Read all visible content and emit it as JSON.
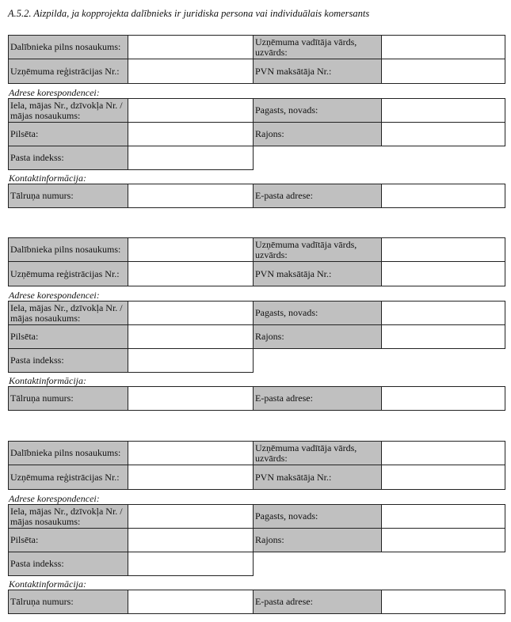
{
  "title": "A.5.2. Aizpilda, ja kopprojekta dalībnieks ir juridiska persona vai individuālais komersants",
  "blocks": [
    {
      "participant_full_name_label": "Dalībnieka pilns nosaukums:",
      "company_head_name_label": "Uzņēmuma vadītāja vārds, uzvārds:",
      "company_reg_no_label": "Uzņēmuma reģistrācijas Nr.:",
      "vat_payer_no_label": "PVN maksātāja Nr.:",
      "address_section_label": "Adrese korespondencei:",
      "street_label": "Iela, mājas Nr., dzīvokļa Nr. / mājas nosaukums:",
      "parish_label": "Pagasts, novads:",
      "city_label": "Pilsēta:",
      "district_label": "Rajons:",
      "postal_code_label": "Pasta indekss:",
      "contact_section_label": "Kontaktinformācija:",
      "phone_label": "Tālruņa numurs:",
      "email_label": "E-pasta adrese:"
    },
    {
      "participant_full_name_label": "Dalībnieka pilns nosaukums:",
      "company_head_name_label": "Uzņēmuma vadītāja vārds, uzvārds:",
      "company_reg_no_label": "Uzņēmuma reģistrācijas Nr.:",
      "vat_payer_no_label": "PVN maksātāja Nr.:",
      "address_section_label": "Adrese korespondencei:",
      "street_label": "Iela, mājas Nr., dzīvokļa Nr. / mājas nosaukums:",
      "parish_label": "Pagasts, novads:",
      "city_label": "Pilsēta:",
      "district_label": "Rajons:",
      "postal_code_label": "Pasta indekss:",
      "contact_section_label": "Kontaktinformācija:",
      "phone_label": "Tālruņa numurs:",
      "email_label": "E-pasta adrese:"
    },
    {
      "participant_full_name_label": "Dalībnieka pilns nosaukums:",
      "company_head_name_label": "Uzņēmuma vadītāja vārds, uzvārds:",
      "company_reg_no_label": "Uzņēmuma reģistrācijas Nr.:",
      "vat_payer_no_label": "PVN maksātāja Nr.:",
      "address_section_label": "Adrese korespondencei:",
      "street_label": "Iela, mājas Nr., dzīvokļa Nr. / mājas nosaukums:",
      "parish_label": "Pagasts, novads:",
      "city_label": "Pilsēta:",
      "district_label": "Rajons:",
      "postal_code_label": "Pasta indekss:",
      "contact_section_label": "Kontaktinformācija:",
      "phone_label": "Tālruņa numurs:",
      "email_label": "E-pasta adrese:"
    }
  ],
  "colors": {
    "label_cell": "#c0c0c0",
    "border": "#222222"
  }
}
